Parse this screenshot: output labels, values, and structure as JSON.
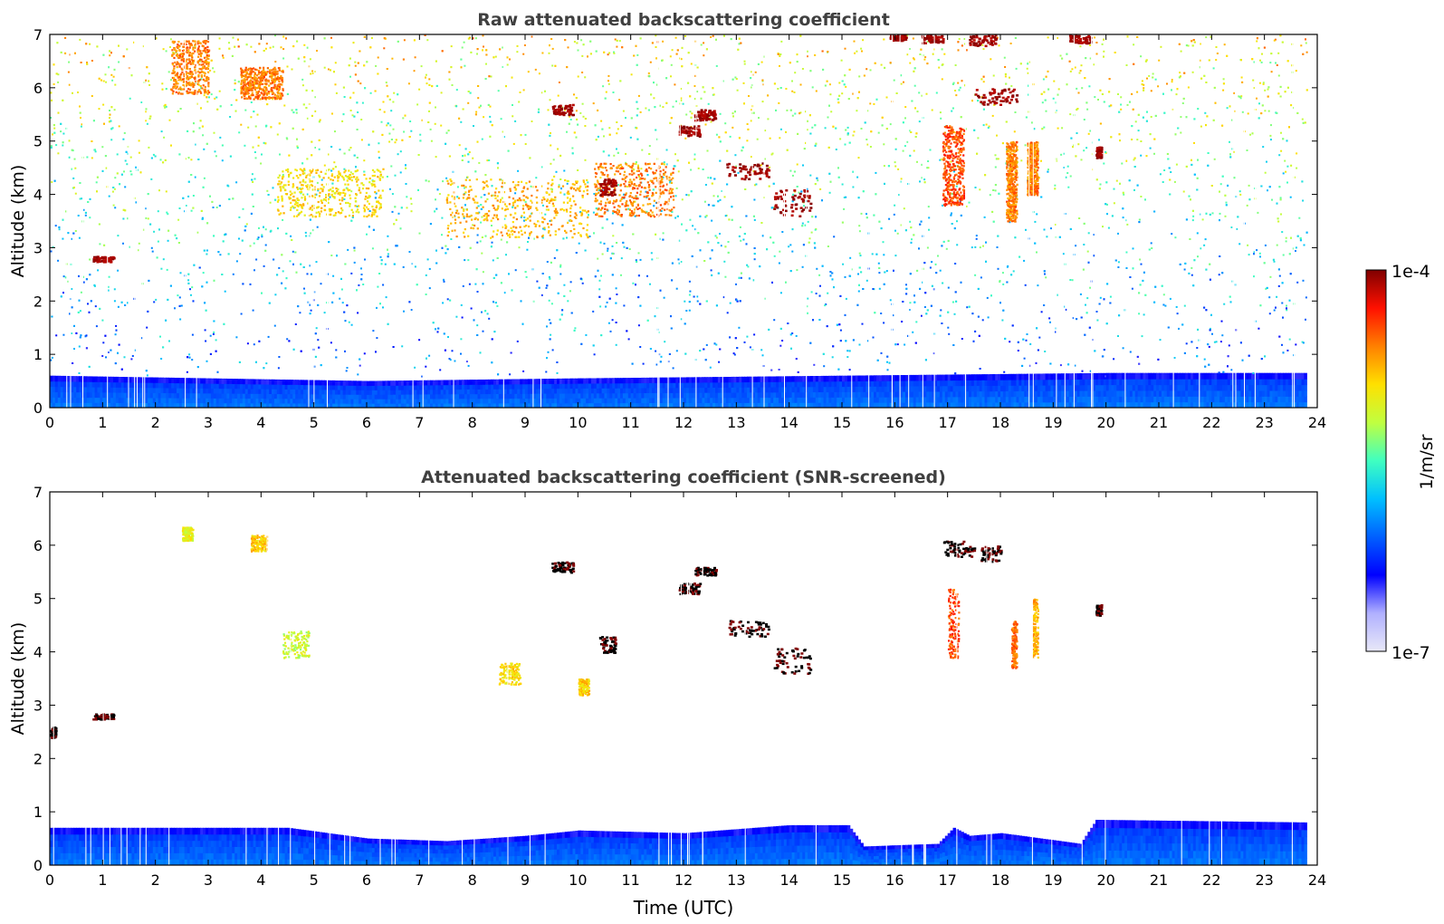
{
  "chart_data": [
    {
      "type": "heatmap",
      "title": "Raw attenuated backscattering coefficient",
      "ylabel": "Altitude (km)",
      "xlabel": "",
      "xlim": [
        0,
        24
      ],
      "ylim": [
        0,
        7
      ],
      "xticks": [
        "0",
        "1",
        "2",
        "3",
        "4",
        "5",
        "6",
        "7",
        "8",
        "9",
        "10",
        "11",
        "12",
        "13",
        "14",
        "15",
        "16",
        "17",
        "18",
        "19",
        "20",
        "21",
        "22",
        "23",
        "24"
      ],
      "yticks": [
        "0",
        "1",
        "2",
        "3",
        "4",
        "5",
        "6",
        "7"
      ],
      "data_end_time": 23.8,
      "boundary_layer": [
        {
          "t": 0,
          "top": 0.6
        },
        {
          "t": 6,
          "top": 0.5
        },
        {
          "t": 10,
          "top": 0.55
        },
        {
          "t": 15,
          "top": 0.6
        },
        {
          "t": 20,
          "top": 0.65
        },
        {
          "t": 23.8,
          "top": 0.65
        }
      ],
      "aerosol_layers": [
        {
          "t0": 2.3,
          "t1": 3.0,
          "alt0": 5.9,
          "alt1": 6.9,
          "level": 0.8
        },
        {
          "t0": 3.6,
          "t1": 4.4,
          "alt0": 5.8,
          "alt1": 6.4,
          "level": 0.8
        },
        {
          "t0": 4.3,
          "t1": 6.3,
          "alt0": 3.6,
          "alt1": 4.5,
          "level": 0.7
        },
        {
          "t0": 7.5,
          "t1": 10.2,
          "alt0": 3.2,
          "alt1": 4.3,
          "level": 0.75
        },
        {
          "t0": 10.3,
          "t1": 11.8,
          "alt0": 3.6,
          "alt1": 4.6,
          "level": 0.8
        },
        {
          "t0": 16.9,
          "t1": 17.3,
          "alt0": 3.8,
          "alt1": 5.3,
          "level": 0.85
        },
        {
          "t0": 18.1,
          "t1": 18.3,
          "alt0": 3.5,
          "alt1": 5.0,
          "level": 0.8
        },
        {
          "t0": 18.5,
          "t1": 18.7,
          "alt0": 4.0,
          "alt1": 5.0,
          "level": 0.8
        }
      ],
      "clouds": [
        {
          "t0": 0.8,
          "t1": 1.2,
          "alt0": 2.75,
          "alt1": 2.85
        },
        {
          "t0": 9.5,
          "t1": 9.9,
          "alt0": 5.5,
          "alt1": 5.7
        },
        {
          "t0": 11.9,
          "t1": 12.3,
          "alt0": 5.1,
          "alt1": 5.3
        },
        {
          "t0": 12.2,
          "t1": 12.6,
          "alt0": 5.4,
          "alt1": 5.6
        },
        {
          "t0": 12.8,
          "t1": 13.6,
          "alt0": 4.3,
          "alt1": 4.6
        },
        {
          "t0": 13.7,
          "t1": 14.4,
          "alt0": 3.6,
          "alt1": 4.1
        },
        {
          "t0": 10.4,
          "t1": 10.7,
          "alt0": 4.0,
          "alt1": 4.3
        },
        {
          "t0": 15.9,
          "t1": 16.2,
          "alt0": 6.9,
          "alt1": 7.0
        },
        {
          "t0": 16.5,
          "t1": 16.9,
          "alt0": 6.85,
          "alt1": 7.0
        },
        {
          "t0": 17.4,
          "t1": 17.9,
          "alt0": 6.8,
          "alt1": 7.0
        },
        {
          "t0": 19.3,
          "t1": 19.7,
          "alt0": 6.85,
          "alt1": 7.0
        },
        {
          "t0": 17.5,
          "t1": 18.3,
          "alt0": 5.7,
          "alt1": 6.0
        },
        {
          "t0": 19.8,
          "t1": 19.9,
          "alt0": 4.7,
          "alt1": 4.9
        }
      ]
    },
    {
      "type": "heatmap",
      "title": "Attenuated backscattering coefficient (SNR-screened)",
      "ylabel": "Altitude (km)",
      "xlabel": "Time (UTC)",
      "xlim": [
        0,
        24
      ],
      "ylim": [
        0,
        7
      ],
      "xticks": [
        "0",
        "1",
        "2",
        "3",
        "4",
        "5",
        "6",
        "7",
        "8",
        "9",
        "10",
        "11",
        "12",
        "13",
        "14",
        "15",
        "16",
        "17",
        "18",
        "19",
        "20",
        "21",
        "22",
        "23",
        "24"
      ],
      "yticks": [
        "0",
        "1",
        "2",
        "3",
        "4",
        "5",
        "6",
        "7"
      ],
      "data_end_time": 23.8,
      "boundary_layer": [
        {
          "t": 0,
          "top": 0.7
        },
        {
          "t": 4.5,
          "top": 0.7
        },
        {
          "t": 6,
          "top": 0.5
        },
        {
          "t": 7.5,
          "top": 0.45
        },
        {
          "t": 9,
          "top": 0.55
        },
        {
          "t": 10,
          "top": 0.65
        },
        {
          "t": 12,
          "top": 0.6
        },
        {
          "t": 14,
          "top": 0.75
        },
        {
          "t": 15.1,
          "top": 0.75
        },
        {
          "t": 15.4,
          "top": 0.35
        },
        {
          "t": 16.8,
          "top": 0.4
        },
        {
          "t": 17.1,
          "top": 0.7
        },
        {
          "t": 17.4,
          "top": 0.55
        },
        {
          "t": 18,
          "top": 0.6
        },
        {
          "t": 19.5,
          "top": 0.4
        },
        {
          "t": 19.8,
          "top": 0.85
        },
        {
          "t": 23.8,
          "top": 0.8
        }
      ],
      "aerosol_layers": [
        {
          "t0": 2.5,
          "t1": 2.7,
          "alt0": 6.1,
          "alt1": 6.35,
          "level": 0.65
        },
        {
          "t0": 3.8,
          "t1": 4.1,
          "alt0": 5.9,
          "alt1": 6.2,
          "level": 0.72
        },
        {
          "t0": 4.4,
          "t1": 4.9,
          "alt0": 3.9,
          "alt1": 4.4,
          "level": 0.62
        },
        {
          "t0": 8.5,
          "t1": 8.9,
          "alt0": 3.4,
          "alt1": 3.8,
          "level": 0.7
        },
        {
          "t0": 10.0,
          "t1": 10.2,
          "alt0": 3.2,
          "alt1": 3.5,
          "level": 0.72
        },
        {
          "t0": 17.0,
          "t1": 17.2,
          "alt0": 3.9,
          "alt1": 5.2,
          "level": 0.85
        },
        {
          "t0": 18.2,
          "t1": 18.3,
          "alt0": 3.7,
          "alt1": 4.6,
          "level": 0.82
        },
        {
          "t0": 18.6,
          "t1": 18.7,
          "alt0": 3.9,
          "alt1": 5.0,
          "level": 0.75
        }
      ],
      "clouds": [
        {
          "t0": 0.0,
          "t1": 0.1,
          "alt0": 2.4,
          "alt1": 2.6
        },
        {
          "t0": 0.8,
          "t1": 1.2,
          "alt0": 2.75,
          "alt1": 2.85
        },
        {
          "t0": 9.5,
          "t1": 9.9,
          "alt0": 5.5,
          "alt1": 5.7
        },
        {
          "t0": 11.9,
          "t1": 12.3,
          "alt0": 5.1,
          "alt1": 5.3
        },
        {
          "t0": 12.2,
          "t1": 12.6,
          "alt0": 5.45,
          "alt1": 5.6
        },
        {
          "t0": 12.8,
          "t1": 13.6,
          "alt0": 4.3,
          "alt1": 4.6
        },
        {
          "t0": 13.7,
          "t1": 14.4,
          "alt0": 3.6,
          "alt1": 4.1
        },
        {
          "t0": 10.4,
          "t1": 10.7,
          "alt0": 4.0,
          "alt1": 4.3
        },
        {
          "t0": 16.9,
          "t1": 17.5,
          "alt0": 5.8,
          "alt1": 6.1
        },
        {
          "t0": 17.6,
          "t1": 18.0,
          "alt0": 5.7,
          "alt1": 6.0
        },
        {
          "t0": 19.8,
          "t1": 19.9,
          "alt0": 4.7,
          "alt1": 4.9
        }
      ]
    }
  ],
  "colorbar": {
    "label": "1/m/sr",
    "max_label": "1e-4",
    "min_label": "1e-7",
    "scale": "log",
    "range": [
      1e-07,
      0.0001
    ],
    "colormap": "jet",
    "colors": [
      "#e8e8f8",
      "#b0b0ff",
      "#0000ff",
      "#0060ff",
      "#00c0ff",
      "#40ffc0",
      "#c0ff40",
      "#ffe000",
      "#ff8000",
      "#ff1000",
      "#800000"
    ]
  }
}
